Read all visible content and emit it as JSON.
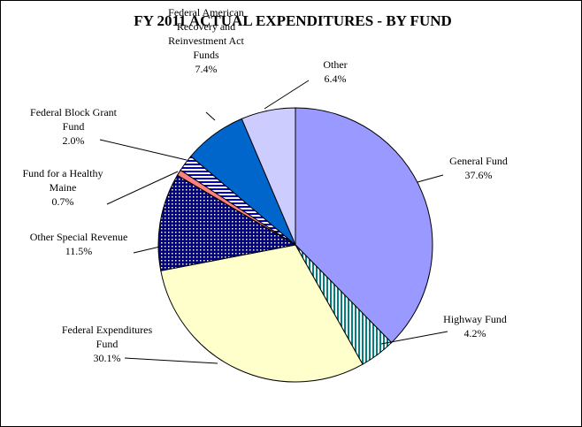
{
  "chart_data": {
    "type": "pie",
    "title": "FY 2011 ACTUAL EXPENDITURES - BY FUND",
    "slices": [
      {
        "label": [
          "General Fund"
        ],
        "pct_label": "37.6%",
        "value": 37.6,
        "color": "#9999ff",
        "pattern": "solid"
      },
      {
        "label": [
          "Highway Fund"
        ],
        "pct_label": "4.2%",
        "value": 4.2,
        "color": "#008080",
        "pattern": "vlines"
      },
      {
        "label": [
          "Federal Expenditures",
          "Fund"
        ],
        "pct_label": "30.1%",
        "value": 30.1,
        "color": "#ffffcc",
        "pattern": "solid"
      },
      {
        "label": [
          "Other Special Revenue"
        ],
        "pct_label": "11.5%",
        "value": 11.5,
        "color": "#000080",
        "pattern": "grid"
      },
      {
        "label": [
          "Fund for a Healthy",
          "Maine"
        ],
        "pct_label": "0.7%",
        "value": 0.7,
        "color": "#ff8080",
        "pattern": "solid"
      },
      {
        "label": [
          "Federal Block Grant",
          "Fund"
        ],
        "pct_label": "2.0%",
        "value": 2.0,
        "color": "#0000cc",
        "pattern": "hlines"
      },
      {
        "label": [
          "Federal American",
          "Recovery and",
          "Reinvestment Act",
          "Funds"
        ],
        "pct_label": "7.4%",
        "value": 7.4,
        "color": "#0066cc",
        "pattern": "solid"
      },
      {
        "label": [
          "Other"
        ],
        "pct_label": "6.4%",
        "value": 6.4,
        "color": "#ccccff",
        "pattern": "solid"
      }
    ],
    "start_angle": "12 o'clock",
    "direction": "clockwise",
    "legend": "none"
  }
}
